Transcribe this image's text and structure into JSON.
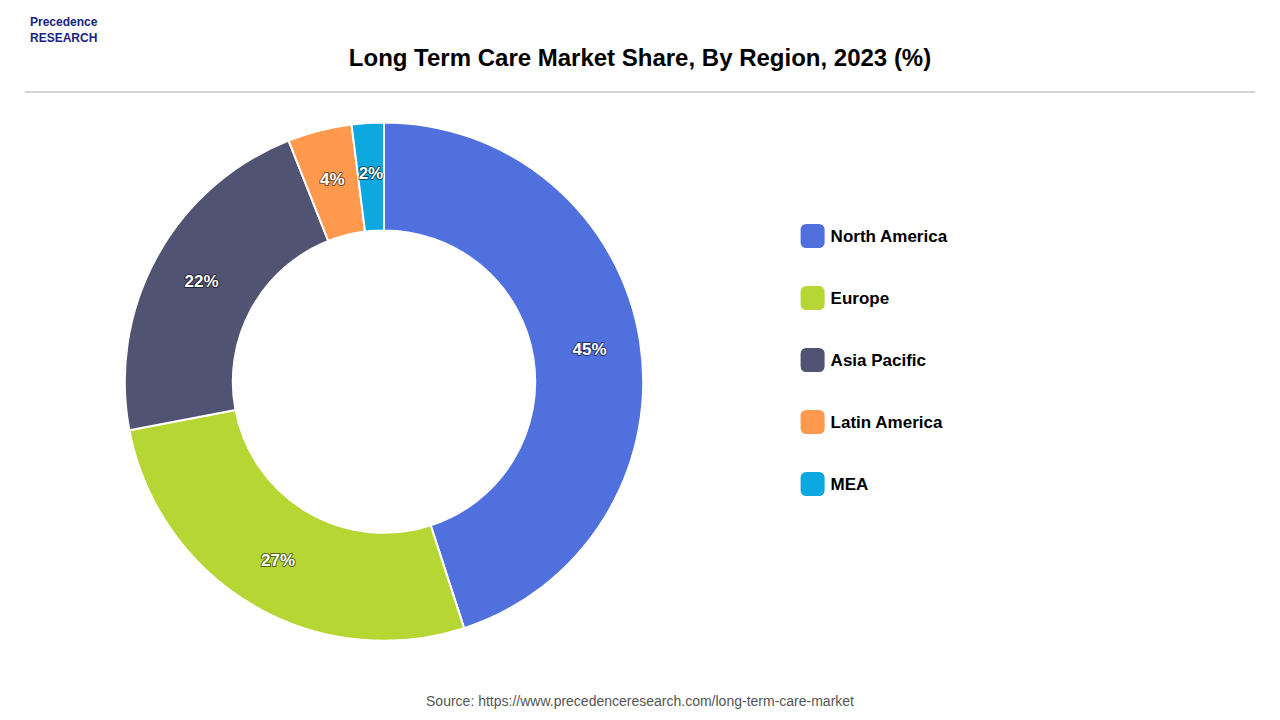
{
  "chart_data": {
    "type": "pie",
    "title": "Long Term Care Market Share, By Region, 2023 (%)",
    "categories": [
      "North America",
      "Europe",
      "Asia Pacific",
      "Latin America",
      "MEA"
    ],
    "values": [
      45,
      27,
      22,
      4,
      2
    ],
    "value_labels": [
      "45%",
      "27%",
      "22%",
      "4%",
      "2%"
    ],
    "data_labels": true,
    "legend": "right",
    "annotations": [
      "Precedence\nRESEARCH",
      "Source: https://www.precedenceresearch.com/long-term-care-market"
    ]
  }
}
